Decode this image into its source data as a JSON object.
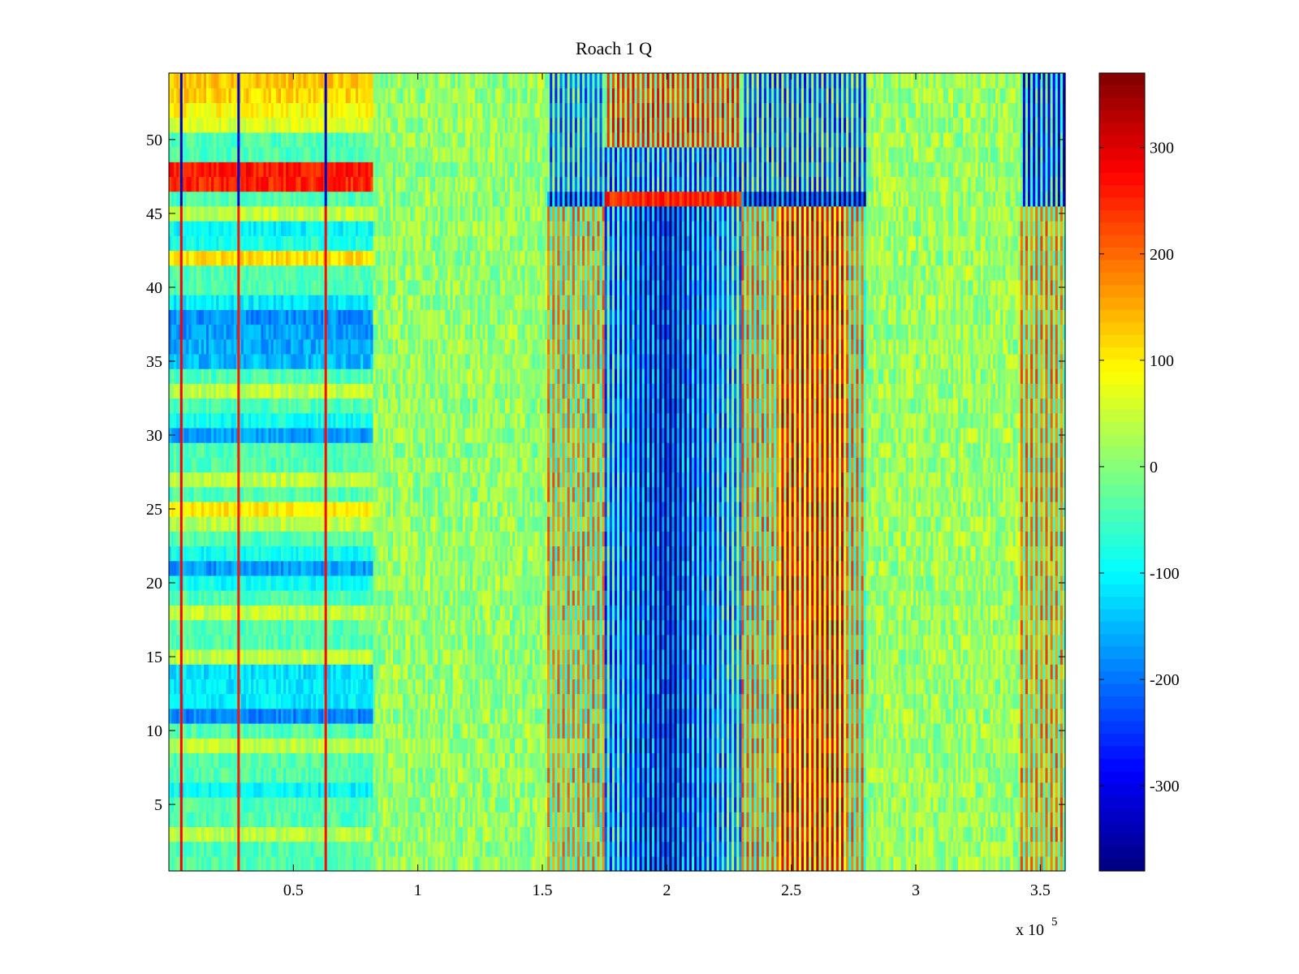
{
  "chart_data": {
    "type": "heatmap",
    "title": "Roach 1 Q",
    "xlabel": "",
    "ylabel": "",
    "x_multiplier_label": "x 10",
    "x_multiplier_exponent": "5",
    "x_unit_scale": 100000,
    "xlim": [
      0,
      3.6
    ],
    "ylim": [
      0.5,
      54.5
    ],
    "x_ticks": [
      0.5,
      1,
      1.5,
      2,
      2.5,
      3,
      3.5
    ],
    "x_tick_labels": [
      "0.5",
      "1",
      "1.5",
      "2",
      "2.5",
      "3",
      "3.5"
    ],
    "y_ticks": [
      5,
      10,
      15,
      20,
      25,
      30,
      35,
      40,
      45,
      50
    ],
    "y_tick_labels": [
      "5",
      "10",
      "15",
      "20",
      "25",
      "30",
      "35",
      "40",
      "45",
      "50"
    ],
    "rows": 54,
    "colormap": "jet",
    "clim": [
      -380,
      370
    ],
    "colorbar": {
      "ticks": [
        300,
        200,
        100,
        0,
        -100,
        -200,
        -300
      ],
      "tick_labels": [
        "300",
        "200",
        "100",
        "0",
        "-100",
        "-200",
        "-300"
      ]
    },
    "row_baseline_by_segment": [
      {
        "x_range": [
          0,
          0.82
        ],
        "description_rows": {
          "high_rows": [
            48,
            47,
            54,
            53,
            52,
            42,
            25
          ],
          "low_rows": [
            38,
            37,
            36,
            35,
            30,
            21,
            11,
            14,
            13,
            12,
            6,
            39,
            22,
            20,
            18,
            15,
            16
          ],
          "row_values": {
            "48": 260,
            "47": 250,
            "54": 130,
            "53": 120,
            "52": 90,
            "51": 60,
            "42": 110,
            "25": 100,
            "38": -180,
            "37": -170,
            "36": -160,
            "35": -150,
            "39": -110,
            "30": -170,
            "31": -90,
            "21": -170,
            "22": -90,
            "20": -90,
            "11": -190,
            "14": -120,
            "13": -110,
            "12": -110,
            "6": -100,
            "44": -100,
            "43": -80
          }
        }
      },
      {
        "x_range": [
          0.82,
          1.52
        ],
        "mean": 10
      },
      {
        "x_range": [
          1.52,
          1.75
        ],
        "mean_lower": 80,
        "mean_upper_rows_46_54": -150
      },
      {
        "x_range": [
          1.75,
          2.3
        ],
        "mean_lower": -170,
        "center_min_x": 2.0,
        "center_min": -330,
        "rows_46_value": 260,
        "rows_47_49": -220,
        "rows_50_54": 150
      },
      {
        "x_range": [
          2.3,
          2.8
        ],
        "mean_lower": 150,
        "rows_46_54": -220
      },
      {
        "x_range": [
          2.8,
          3.42
        ],
        "mean": 15
      },
      {
        "x_range": [
          3.42,
          3.6
        ],
        "mean_lower": 120,
        "rows_46_54": -250
      }
    ],
    "vertical_lines": [
      {
        "x": 0.05,
        "upper_rows_value": -340,
        "lower_rows_value": 280
      },
      {
        "x": 0.28,
        "upper_rows_value": -320,
        "lower_rows_value": 260
      },
      {
        "x": 0.63,
        "upper_rows_value": -330,
        "lower_rows_value": 270
      }
    ]
  }
}
